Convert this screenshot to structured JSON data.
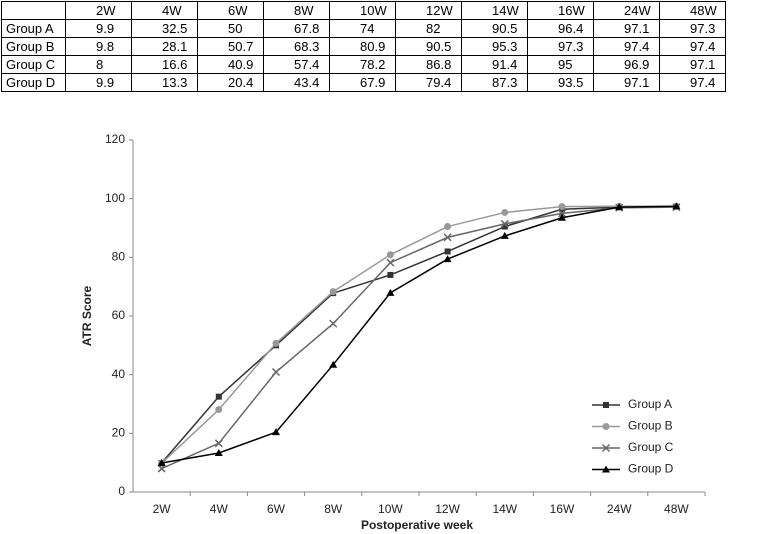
{
  "chart_data": {
    "type": "line",
    "x_label": "Postoperative week",
    "y_label": "ATR Score",
    "categories": [
      "2W",
      "4W",
      "6W",
      "8W",
      "10W",
      "12W",
      "14W",
      "16W",
      "24W",
      "48W"
    ],
    "series": [
      {
        "name": "Group A",
        "color": "#333333",
        "marker": "square",
        "values": [
          9.9,
          32.5,
          50,
          67.8,
          74,
          82,
          90.5,
          96.4,
          97.1,
          97.3
        ]
      },
      {
        "name": "Group B",
        "color": "#999999",
        "marker": "circle",
        "values": [
          9.8,
          28.1,
          50.7,
          68.3,
          80.9,
          90.5,
          95.3,
          97.3,
          97.4,
          97.4
        ]
      },
      {
        "name": "Group C",
        "color": "#666666",
        "marker": "x",
        "values": [
          8,
          16.6,
          40.9,
          57.4,
          78.2,
          86.8,
          91.4,
          95,
          96.9,
          97.1
        ]
      },
      {
        "name": "Group D",
        "color": "#000000",
        "marker": "triangle",
        "values": [
          9.9,
          13.3,
          20.4,
          43.4,
          67.9,
          79.4,
          87.3,
          93.5,
          97.1,
          97.4
        ]
      }
    ],
    "ylim": [
      0,
      120
    ],
    "yticks": [
      0,
      20,
      40,
      60,
      80,
      100,
      120
    ],
    "grid": false,
    "legend": "lower right"
  }
}
